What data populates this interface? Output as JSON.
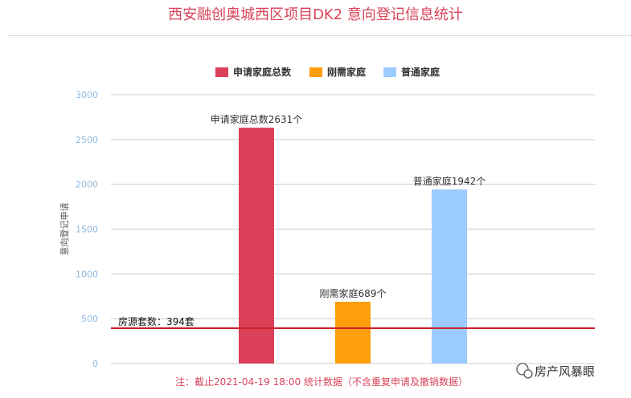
{
  "page": {
    "title": "西安融创奥城西区项目DK2 意向登记信息统计",
    "note": "注：截止2021-04-19 18:00 统计数据（不含重复申请及撤销数据）",
    "watermark": "房产风暴眼"
  },
  "chart_data": {
    "type": "bar",
    "categories": [
      "申请家庭总数",
      "刚需家庭",
      "普通家庭"
    ],
    "values": [
      2631,
      689,
      1942
    ],
    "colors": [
      "#db4058",
      "#ff9e0d",
      "#9ccbff"
    ],
    "data_labels": [
      "申请家庭总数2631个",
      "刚需家庭689个",
      "普通家庭1942个"
    ],
    "legend": [
      "申请家庭总数",
      "刚需家庭",
      "普通家庭"
    ],
    "legend_position": "top-center",
    "ylabel": "意向登记申请",
    "ylim": [
      0,
      3000
    ],
    "yticks": [
      0,
      500,
      1000,
      1500,
      2000,
      2500,
      3000
    ],
    "grid": true,
    "reference_line": {
      "value": 394,
      "label": "房源套数：394套",
      "color": "#cc1f2a"
    }
  }
}
